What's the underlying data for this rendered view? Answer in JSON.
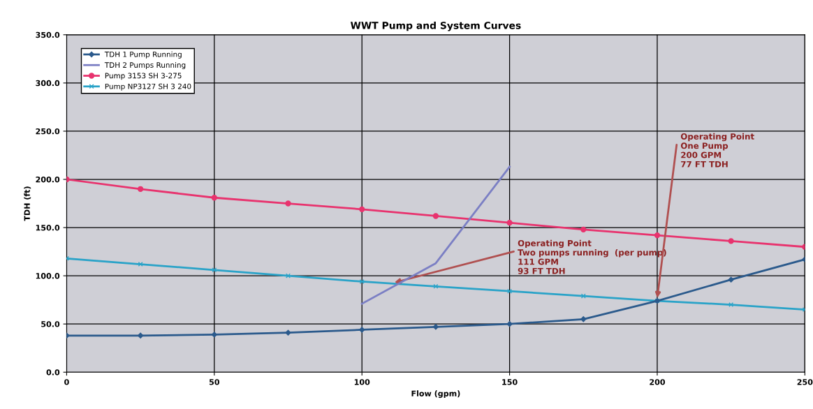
{
  "chart_data": {
    "type": "line",
    "title": "WWT Pump and System Curves",
    "xlabel": "Flow (gpm)",
    "ylabel": "TDH (ft)",
    "x": [
      0,
      25,
      50,
      75,
      100,
      125,
      150,
      175,
      200,
      225,
      250
    ],
    "series": [
      {
        "name": "TDH 1 Pump Running",
        "color": "#2b5a8c",
        "marker": "diamond",
        "values": [
          38,
          38,
          39,
          41,
          44,
          47,
          50,
          55,
          74,
          96,
          117
        ]
      },
      {
        "name": "TDH 2 Pumps Running",
        "color": "#7b7fc4",
        "marker": "none",
        "x": [
          100,
          125,
          150
        ],
        "values": [
          71,
          113,
          213
        ]
      },
      {
        "name": "Pump 3153 SH 3-275",
        "color": "#e8336e",
        "marker": "circle",
        "values": [
          200,
          190,
          181,
          175,
          169,
          162,
          155,
          148,
          142,
          136,
          130
        ]
      },
      {
        "name": "Pump NP3127 SH 3 240",
        "color": "#2aa3c8",
        "marker": "cross",
        "values": [
          118,
          112,
          106,
          100,
          94,
          89,
          84,
          79,
          74,
          70,
          65
        ]
      }
    ],
    "xlim": [
      0,
      250
    ],
    "xticks": [
      0,
      50,
      100,
      150,
      200,
      250
    ],
    "ylim": [
      0,
      350
    ],
    "yticks": [
      {
        "value": 0,
        "label": "0.0"
      },
      {
        "value": 50,
        "label": "50.0"
      },
      {
        "value": 100,
        "label": "100.0"
      },
      {
        "value": 150,
        "label": "150.0"
      },
      {
        "value": 200,
        "label": "200.0"
      },
      {
        "value": 250,
        "label": "250.0"
      },
      {
        "value": 300,
        "label": "300.0"
      },
      {
        "value": 350,
        "label": "350.0"
      }
    ],
    "grid": true,
    "legend": "top left",
    "annotations": [
      {
        "text": "Operating Point\nTwo pumps running  (per pump)\n111 GPM\n93 FT TDH",
        "x": 111,
        "y": 93
      },
      {
        "text": "Operating Point\nOne Pump\n200 GPM\n77 FT TDH",
        "x": 200,
        "y": 77
      }
    ]
  }
}
